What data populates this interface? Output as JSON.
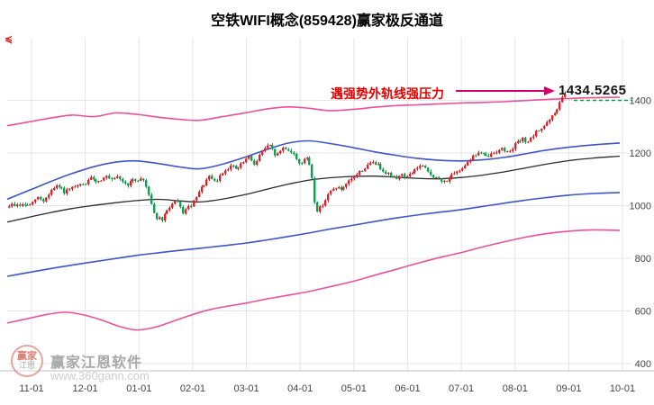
{
  "title": "空铁WIFI概念(859428)赢家极反通道",
  "corner_marker": "≼",
  "annotation": {
    "text": "遇强势外轨线强压力",
    "price_label": "1434.5265"
  },
  "watermark": {
    "brand": "赢家江恩软件",
    "url": "www.360gann.com",
    "logo_line1": "赢家",
    "logo_line2": "江恩"
  },
  "chart_data": {
    "type": "candlestick",
    "title": "空铁WIFI概念(859428)赢家极反通道",
    "symbol": "859428",
    "name": "空铁WIFI概念",
    "channel_name": "赢家极反通道",
    "ylim": [
      400,
      1400
    ],
    "y_ticks": [
      1400,
      1200,
      1000,
      800,
      600,
      400
    ],
    "x_ticks": [
      "11-01",
      "12-01",
      "01-01",
      "02-01",
      "03-01",
      "04-01",
      "05-01",
      "06-01",
      "07-01",
      "08-01",
      "09-01",
      "10-01"
    ],
    "grid": true,
    "resistance_level": 1434.5265,
    "dash_line_level": 1400,
    "colors": {
      "up": "#d9232b",
      "down": "#0ba14f",
      "outer": "#ef4f9a",
      "inner": "#3d55cc",
      "center": "#2b2b2b",
      "grid": "#e5e5e5",
      "axis_text": "#444444",
      "dash": "#00a344",
      "arrow": "#d4006a"
    },
    "close_path": [
      [
        "11-01",
        1002
      ],
      [
        "11-04",
        1032
      ],
      [
        "11-08",
        1018
      ],
      [
        "11-12",
        1058
      ],
      [
        "11-16",
        1074
      ],
      [
        "11-20",
        1050
      ],
      [
        "11-25",
        1068
      ],
      [
        "12-01",
        1084
      ],
      [
        "12-05",
        1108
      ],
      [
        "12-08",
        1088
      ],
      [
        "12-12",
        1114
      ],
      [
        "12-16",
        1094
      ],
      [
        "12-20",
        1108
      ],
      [
        "12-24",
        1078
      ],
      [
        "12-28",
        1094
      ],
      [
        "01-03",
        1104
      ],
      [
        "01-06",
        1058
      ],
      [
        "01-10",
        958
      ],
      [
        "01-14",
        944
      ],
      [
        "01-18",
        994
      ],
      [
        "01-22",
        1018
      ],
      [
        "01-26",
        974
      ],
      [
        "02-01",
        1008
      ],
      [
        "02-06",
        1068
      ],
      [
        "02-10",
        1108
      ],
      [
        "02-14",
        1088
      ],
      [
        "02-18",
        1128
      ],
      [
        "02-22",
        1152
      ],
      [
        "02-26",
        1138
      ],
      [
        "03-02",
        1184
      ],
      [
        "03-06",
        1158
      ],
      [
        "03-10",
        1212
      ],
      [
        "03-14",
        1228
      ],
      [
        "03-18",
        1188
      ],
      [
        "03-22",
        1222
      ],
      [
        "03-26",
        1208
      ],
      [
        "04-01",
        1158
      ],
      [
        "04-04",
        1184
      ],
      [
        "04-07",
        1148
      ],
      [
        "04-10",
        974
      ],
      [
        "04-13",
        998
      ],
      [
        "04-17",
        1044
      ],
      [
        "04-21",
        1072
      ],
      [
        "04-25",
        1058
      ],
      [
        "04-29",
        1092
      ],
      [
        "05-03",
        1122
      ],
      [
        "05-08",
        1148
      ],
      [
        "05-12",
        1168
      ],
      [
        "05-16",
        1144
      ],
      [
        "05-20",
        1124
      ],
      [
        "05-24",
        1104
      ],
      [
        "05-28",
        1118
      ],
      [
        "06-01",
        1108
      ],
      [
        "06-05",
        1138
      ],
      [
        "06-09",
        1152
      ],
      [
        "06-13",
        1124
      ],
      [
        "06-17",
        1104
      ],
      [
        "06-21",
        1088
      ],
      [
        "06-25",
        1108
      ],
      [
        "06-29",
        1124
      ],
      [
        "07-03",
        1158
      ],
      [
        "07-07",
        1184
      ],
      [
        "07-11",
        1204
      ],
      [
        "07-15",
        1184
      ],
      [
        "07-19",
        1198
      ],
      [
        "07-23",
        1218
      ],
      [
        "07-27",
        1204
      ],
      [
        "08-01",
        1232
      ],
      [
        "08-05",
        1252
      ],
      [
        "08-09",
        1244
      ],
      [
        "08-13",
        1278
      ],
      [
        "08-17",
        1302
      ],
      [
        "08-21",
        1328
      ],
      [
        "08-24",
        1358
      ],
      [
        "08-27",
        1398
      ],
      [
        "08-29",
        1424
      ]
    ],
    "channels": {
      "outer_top": [
        [
          "11-01",
          1320
        ],
        [
          "11-12",
          1333
        ],
        [
          "11-24",
          1344
        ],
        [
          "12-06",
          1338
        ],
        [
          "12-18",
          1352
        ],
        [
          "12-30",
          1347
        ],
        [
          "01-12",
          1336
        ],
        [
          "01-24",
          1328
        ],
        [
          "02-05",
          1324
        ],
        [
          "02-17",
          1337
        ],
        [
          "03-01",
          1353
        ],
        [
          "03-13",
          1368
        ],
        [
          "03-25",
          1375
        ],
        [
          "04-06",
          1370
        ],
        [
          "04-18",
          1361
        ],
        [
          "05-01",
          1366
        ],
        [
          "05-13",
          1374
        ],
        [
          "05-25",
          1380
        ],
        [
          "06-06",
          1383
        ],
        [
          "06-18",
          1386
        ],
        [
          "07-01",
          1390
        ],
        [
          "07-13",
          1392
        ],
        [
          "07-25",
          1395
        ],
        [
          "08-06",
          1399
        ],
        [
          "08-18",
          1403
        ],
        [
          "09-01",
          1407
        ],
        [
          "09-15",
          1410
        ],
        [
          "09-30",
          1412
        ]
      ],
      "upper_blue": [
        [
          "11-01",
          1062
        ],
        [
          "11-12",
          1092
        ],
        [
          "11-24",
          1122
        ],
        [
          "12-06",
          1148
        ],
        [
          "12-18",
          1165
        ],
        [
          "12-30",
          1170
        ],
        [
          "01-12",
          1160
        ],
        [
          "01-24",
          1147
        ],
        [
          "02-05",
          1140
        ],
        [
          "02-17",
          1156
        ],
        [
          "03-01",
          1186
        ],
        [
          "03-13",
          1214
        ],
        [
          "03-25",
          1238
        ],
        [
          "04-06",
          1246
        ],
        [
          "04-18",
          1236
        ],
        [
          "05-01",
          1220
        ],
        [
          "05-13",
          1204
        ],
        [
          "05-25",
          1191
        ],
        [
          "06-06",
          1180
        ],
        [
          "06-18",
          1173
        ],
        [
          "07-01",
          1170
        ],
        [
          "07-13",
          1174
        ],
        [
          "07-25",
          1183
        ],
        [
          "08-06",
          1196
        ],
        [
          "08-18",
          1210
        ],
        [
          "09-01",
          1222
        ],
        [
          "09-15",
          1231
        ],
        [
          "09-30",
          1238
        ]
      ],
      "middle_black": [
        [
          "11-01",
          958
        ],
        [
          "11-12",
          974
        ],
        [
          "11-24",
          989
        ],
        [
          "12-06",
          1001
        ],
        [
          "12-18",
          1011
        ],
        [
          "12-30",
          1019
        ],
        [
          "01-12",
          1024
        ],
        [
          "01-24",
          1018
        ],
        [
          "02-05",
          1014
        ],
        [
          "02-17",
          1024
        ],
        [
          "03-01",
          1043
        ],
        [
          "03-13",
          1063
        ],
        [
          "03-25",
          1082
        ],
        [
          "04-06",
          1097
        ],
        [
          "04-18",
          1106
        ],
        [
          "05-01",
          1111
        ],
        [
          "05-13",
          1112
        ],
        [
          "05-25",
          1108
        ],
        [
          "06-06",
          1104
        ],
        [
          "06-18",
          1102
        ],
        [
          "07-01",
          1107
        ],
        [
          "07-13",
          1116
        ],
        [
          "07-25",
          1128
        ],
        [
          "08-06",
          1142
        ],
        [
          "08-18",
          1157
        ],
        [
          "09-01",
          1171
        ],
        [
          "09-15",
          1181
        ],
        [
          "09-30",
          1188
        ]
      ],
      "lower_blue": [
        [
          "11-01",
          748
        ],
        [
          "11-12",
          761
        ],
        [
          "11-24",
          774
        ],
        [
          "12-06",
          787
        ],
        [
          "12-18",
          799
        ],
        [
          "12-30",
          811
        ],
        [
          "01-12",
          821
        ],
        [
          "01-24",
          830
        ],
        [
          "02-05",
          838
        ],
        [
          "02-17",
          847
        ],
        [
          "03-01",
          858
        ],
        [
          "03-13",
          870
        ],
        [
          "03-25",
          883
        ],
        [
          "04-06",
          896
        ],
        [
          "04-18",
          911
        ],
        [
          "05-01",
          926
        ],
        [
          "05-13",
          940
        ],
        [
          "05-25",
          953
        ],
        [
          "06-06",
          964
        ],
        [
          "06-18",
          974
        ],
        [
          "07-01",
          985
        ],
        [
          "07-13",
          997
        ],
        [
          "07-25",
          1009
        ],
        [
          "08-06",
          1020
        ],
        [
          "08-18",
          1030
        ],
        [
          "09-01",
          1040
        ],
        [
          "09-15",
          1046
        ],
        [
          "09-30",
          1050
        ]
      ],
      "outer_bottom": [
        [
          "11-01",
          574
        ],
        [
          "11-10",
          587
        ],
        [
          "11-20",
          595
        ],
        [
          "11-30",
          586
        ],
        [
          "12-10",
          566
        ],
        [
          "12-20",
          542
        ],
        [
          "12-30",
          528
        ],
        [
          "01-10",
          538
        ],
        [
          "01-20",
          560
        ],
        [
          "01-30",
          583
        ],
        [
          "02-10",
          604
        ],
        [
          "02-20",
          617
        ],
        [
          "03-01",
          630
        ],
        [
          "03-13",
          646
        ],
        [
          "03-25",
          660
        ],
        [
          "04-06",
          674
        ],
        [
          "04-18",
          692
        ],
        [
          "05-01",
          713
        ],
        [
          "05-13",
          736
        ],
        [
          "05-25",
          758
        ],
        [
          "06-06",
          780
        ],
        [
          "06-18",
          801
        ],
        [
          "07-01",
          822
        ],
        [
          "07-13",
          843
        ],
        [
          "07-25",
          862
        ],
        [
          "08-06",
          879
        ],
        [
          "08-18",
          893
        ],
        [
          "09-01",
          903
        ],
        [
          "09-15",
          908
        ],
        [
          "09-30",
          906
        ]
      ]
    }
  }
}
